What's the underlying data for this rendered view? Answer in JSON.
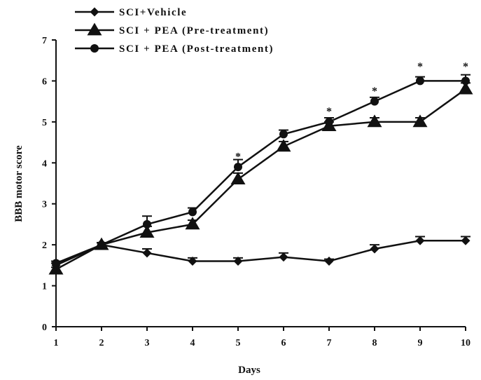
{
  "chart_data": {
    "type": "line",
    "title": "",
    "xlabel": "Days",
    "ylabel": "BBB motor score",
    "x": [
      1,
      2,
      3,
      4,
      5,
      6,
      7,
      8,
      9,
      10
    ],
    "xlim": [
      1,
      10
    ],
    "ylim": [
      0,
      7
    ],
    "yticks": [
      0,
      1,
      2,
      3,
      4,
      5,
      6,
      7
    ],
    "grid": false,
    "legend_position": "top-left",
    "series": [
      {
        "name": "SCI+Vehicle",
        "marker": "diamond",
        "values": [
          1.5,
          2.0,
          1.8,
          1.6,
          1.6,
          1.7,
          1.6,
          1.9,
          2.1,
          2.1
        ],
        "errors": [
          0.05,
          0.05,
          0.1,
          0.08,
          0.08,
          0.1,
          0.05,
          0.1,
          0.1,
          0.1
        ]
      },
      {
        "name": "SCI + PEA (Pre-treatment)",
        "marker": "triangle",
        "values": [
          1.4,
          2.0,
          2.3,
          2.5,
          3.6,
          4.4,
          4.9,
          5.0,
          5.0,
          5.8
        ],
        "errors": [
          0.05,
          0.05,
          0.15,
          0.1,
          0.15,
          0.12,
          0.1,
          0.1,
          0.1,
          0.15
        ]
      },
      {
        "name": "SCI + PEA (Post-treatment)",
        "marker": "circle",
        "values": [
          1.55,
          2.0,
          2.5,
          2.8,
          3.9,
          4.7,
          5.0,
          5.5,
          6.0,
          6.0
        ],
        "errors": [
          0.05,
          0.05,
          0.2,
          0.1,
          0.18,
          0.1,
          0.1,
          0.1,
          0.1,
          0.15
        ]
      }
    ],
    "annotations": [
      {
        "x": 5,
        "y": 4.1,
        "text": "*"
      },
      {
        "x": 7,
        "y": 5.2,
        "text": "*"
      },
      {
        "x": 8,
        "y": 5.7,
        "text": "*"
      },
      {
        "x": 9,
        "y": 6.3,
        "text": "*"
      },
      {
        "x": 10,
        "y": 6.3,
        "text": "*"
      }
    ]
  }
}
